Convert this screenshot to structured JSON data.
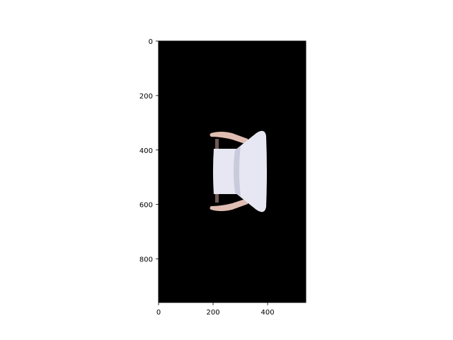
{
  "figure": {
    "image_description": "",
    "image_colors": {
      "background": "#000000",
      "cushion": "#e6e7f2",
      "cushion_shade": "#c9cadb",
      "wood": "#e0bdb2",
      "wood_shade": "#b89a93",
      "leg": "#6f5a55"
    },
    "x_axis": {
      "ticks": [
        {
          "value": 0,
          "label": "0"
        },
        {
          "value": 200,
          "label": "200"
        },
        {
          "value": 400,
          "label": "400"
        }
      ],
      "range": [
        0,
        540
      ]
    },
    "y_axis": {
      "ticks": [
        {
          "value": 0,
          "label": "0"
        },
        {
          "value": 200,
          "label": "200"
        },
        {
          "value": 400,
          "label": "400"
        },
        {
          "value": 600,
          "label": "600"
        },
        {
          "value": 800,
          "label": "800"
        }
      ],
      "range": [
        0,
        960
      ],
      "inverted": true
    }
  }
}
